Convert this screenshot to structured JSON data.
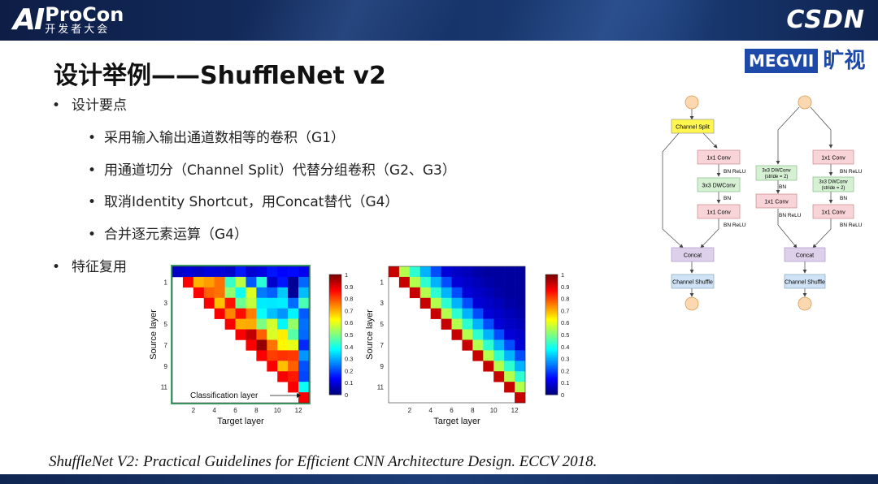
{
  "header": {
    "brand_ai": "AI",
    "brand_name": "ProCon",
    "brand_sub": "开发者大会",
    "sponsor": "CSDN"
  },
  "title": "设计举例——ShuffleNet v2",
  "logo": {
    "box": "MEGVII",
    "cn": "旷视"
  },
  "bullets": {
    "design": "设计要点",
    "items": [
      "采用输入输出通道数相等的卷积（G1）",
      "用通道切分（Channel Split）代替分组卷积（G2、G3）",
      "取消Identity Shortcut，用Concat替代（G4）",
      "合并逐元素运算（G4）"
    ],
    "reuse": "特征复用"
  },
  "heatmaps": {
    "xlabel": "Target layer",
    "ylabel": "Source layer",
    "x_ticks": [
      "2",
      "4",
      "6",
      "8",
      "10",
      "12"
    ],
    "y_ticks": [
      "1",
      "3",
      "5",
      "7",
      "9",
      "11"
    ],
    "colorbar_ticks": [
      "1",
      "0.9",
      "0.8",
      "0.7",
      "0.6",
      "0.5",
      "0.4",
      "0.3",
      "0.2",
      "0.1",
      "0"
    ],
    "annotation": "Classification layer"
  },
  "diagram": {
    "left": {
      "split": "Channel Split",
      "conv1": "1x1 Conv",
      "bnrelu1": "BN ReLU",
      "dw": "3x3 DWConv",
      "bn": "BN",
      "conv2": "1x1 Conv",
      "bnrelu2": "BN ReLU",
      "concat": "Concat",
      "shuffle": "Channel Shuffle"
    },
    "right": {
      "dw_left_1": "3x3 DWConv",
      "dw_left_2": "(stride = 2)",
      "bn_left": "BN",
      "conv_left": "1x1 Conv",
      "bnrelu_left": "BN ReLU",
      "conv1": "1x1 Conv",
      "bnrelu1": "BN ReLU",
      "dw_1": "3x3 DWConv",
      "dw_2": "(stride = 2)",
      "bn": "BN",
      "conv2": "1x1 Conv",
      "bnrelu2": "BN ReLU",
      "concat": "Concat",
      "shuffle": "Channel Shuffle"
    }
  },
  "citation": "ShuffleNet V2: Practical Guidelines for Efficient CNN Architecture Design. ECCV 2018.",
  "colors": {
    "header_bg": "#163266",
    "accent_blue": "#1d4aa8",
    "split_fill": "#fff64f",
    "conv_fill": "#f8d4d8",
    "dw_fill": "#d6f0d4",
    "concat_fill": "#ddd0ea",
    "shuffle_fill": "#cfe2f6",
    "node_fill": "#fbd8b0"
  }
}
